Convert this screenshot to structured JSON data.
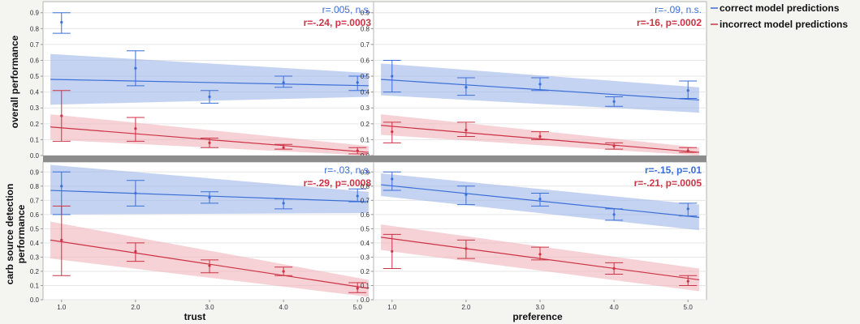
{
  "colors": {
    "blue": "#3a6fd8",
    "red": "#cc3344",
    "blue_band": "#9fb6ea",
    "red_band": "#f0b3b9",
    "panel_bg": "#ffffff",
    "grid": "#e6e6e6",
    "divider": "#8c8c8c",
    "page_bg": "#f4f4f1"
  },
  "legend": [
    {
      "label": "correct model predictions",
      "color": "blue"
    },
    {
      "label": "incorrect model predictions",
      "color": "red"
    }
  ],
  "row_labels": [
    {
      "lines": [
        "overall performance"
      ]
    },
    {
      "lines": [
        "carb source detection",
        "performance"
      ]
    }
  ],
  "column_labels": [
    "trust",
    "preference"
  ],
  "chart_data": [
    {
      "type": "line",
      "xlabel": "trust",
      "ylabel": "overall performance",
      "xlim": [
        0.75,
        5.25
      ],
      "ylim": [
        0,
        0.97
      ],
      "xticks": [
        "1.0",
        "2.0",
        "3.0",
        "4.0",
        "5.0"
      ],
      "yticks": [
        "0.0",
        "0.1",
        "0.2",
        "0.3",
        "0.4",
        "0.5",
        "0.6",
        "0.7",
        "0.8",
        "0.9"
      ],
      "grid": true,
      "annotations": [
        {
          "text": "r=.005, n.s.",
          "color": "blue",
          "bold": false
        },
        {
          "text": "r=-.24, p=.0003",
          "color": "red",
          "bold": true
        }
      ],
      "series": [
        {
          "name": "correct model predictions",
          "color": "blue",
          "fit": [
            0.48,
            0.44
          ],
          "band_lower": [
            0.32,
            0.37
          ],
          "band_upper": [
            0.64,
            0.52
          ],
          "points": [
            {
              "x": 1,
              "y": 0.84,
              "lo": 0.77,
              "hi": 0.9
            },
            {
              "x": 2,
              "y": 0.55,
              "lo": 0.44,
              "hi": 0.66
            },
            {
              "x": 3,
              "y": 0.37,
              "lo": 0.33,
              "hi": 0.41
            },
            {
              "x": 4,
              "y": 0.46,
              "lo": 0.43,
              "hi": 0.5
            },
            {
              "x": 5,
              "y": 0.46,
              "lo": 0.41,
              "hi": 0.5
            }
          ]
        },
        {
          "name": "incorrect model predictions",
          "color": "red",
          "fit": [
            0.18,
            0.02
          ],
          "band_lower": [
            0.1,
            0.0
          ],
          "band_upper": [
            0.26,
            0.06
          ],
          "points": [
            {
              "x": 1,
              "y": 0.25,
              "lo": 0.09,
              "hi": 0.41
            },
            {
              "x": 2,
              "y": 0.17,
              "lo": 0.09,
              "hi": 0.24
            },
            {
              "x": 3,
              "y": 0.08,
              "lo": 0.05,
              "hi": 0.11
            },
            {
              "x": 4,
              "y": 0.05,
              "lo": 0.04,
              "hi": 0.07
            },
            {
              "x": 5,
              "y": 0.03,
              "lo": 0.01,
              "hi": 0.05
            }
          ]
        }
      ]
    },
    {
      "type": "line",
      "xlabel": "preference",
      "ylabel": "overall performance",
      "xlim": [
        0.75,
        5.25
      ],
      "ylim": [
        0,
        0.97
      ],
      "xticks": [
        "1.0",
        "2.0",
        "3.0",
        "4.0",
        "5.0"
      ],
      "yticks": [
        "0.0",
        "0.1",
        "0.2",
        "0.3",
        "0.4",
        "0.5",
        "0.6",
        "0.7",
        "0.8",
        "0.9"
      ],
      "grid": true,
      "annotations": [
        {
          "text": "r=-.09, n.s.",
          "color": "blue",
          "bold": false
        },
        {
          "text": "r=-16, p=.0002",
          "color": "red",
          "bold": true
        }
      ],
      "series": [
        {
          "name": "correct model predictions",
          "color": "blue",
          "fit": [
            0.48,
            0.35
          ],
          "band_lower": [
            0.38,
            0.27
          ],
          "band_upper": [
            0.58,
            0.43
          ],
          "points": [
            {
              "x": 1,
              "y": 0.5,
              "lo": 0.4,
              "hi": 0.6
            },
            {
              "x": 2,
              "y": 0.43,
              "lo": 0.38,
              "hi": 0.49
            },
            {
              "x": 3,
              "y": 0.45,
              "lo": 0.41,
              "hi": 0.49
            },
            {
              "x": 4,
              "y": 0.34,
              "lo": 0.31,
              "hi": 0.37
            },
            {
              "x": 5,
              "y": 0.41,
              "lo": 0.36,
              "hi": 0.47
            }
          ]
        },
        {
          "name": "incorrect model predictions",
          "color": "red",
          "fit": [
            0.19,
            0.02
          ],
          "band_lower": [
            0.13,
            0.0
          ],
          "band_upper": [
            0.26,
            0.05
          ],
          "points": [
            {
              "x": 1,
              "y": 0.15,
              "lo": 0.08,
              "hi": 0.21
            },
            {
              "x": 2,
              "y": 0.16,
              "lo": 0.12,
              "hi": 0.21
            },
            {
              "x": 3,
              "y": 0.12,
              "lo": 0.1,
              "hi": 0.15
            },
            {
              "x": 4,
              "y": 0.06,
              "lo": 0.04,
              "hi": 0.08
            },
            {
              "x": 5,
              "y": 0.03,
              "lo": 0.02,
              "hi": 0.05
            }
          ]
        }
      ]
    },
    {
      "type": "line",
      "xlabel": "trust",
      "ylabel": "carb source detection performance",
      "xlim": [
        0.75,
        5.25
      ],
      "ylim": [
        0,
        0.97
      ],
      "xticks": [
        "1.0",
        "2.0",
        "3.0",
        "4.0",
        "5.0"
      ],
      "yticks": [
        "0.0",
        "0.1",
        "0.2",
        "0.3",
        "0.4",
        "0.5",
        "0.6",
        "0.7",
        "0.8",
        "0.9"
      ],
      "grid": true,
      "annotations": [
        {
          "text": "r=-.03, n.s.",
          "color": "blue",
          "bold": false
        },
        {
          "text": "r=-.29, p=.0008",
          "color": "red",
          "bold": true
        }
      ],
      "series": [
        {
          "name": "correct model predictions",
          "color": "blue",
          "fit": [
            0.77,
            0.69
          ],
          "band_lower": [
            0.6,
            0.61
          ],
          "band_upper": [
            0.95,
            0.76
          ],
          "points": [
            {
              "x": 1,
              "y": 0.8,
              "lo": 0.6,
              "hi": 0.9
            },
            {
              "x": 2,
              "y": 0.75,
              "lo": 0.66,
              "hi": 0.84
            },
            {
              "x": 3,
              "y": 0.72,
              "lo": 0.68,
              "hi": 0.76
            },
            {
              "x": 4,
              "y": 0.68,
              "lo": 0.64,
              "hi": 0.71
            },
            {
              "x": 5,
              "y": 0.73,
              "lo": 0.69,
              "hi": 0.78
            }
          ]
        },
        {
          "name": "incorrect model predictions",
          "color": "red",
          "fit": [
            0.42,
            0.08
          ],
          "band_lower": [
            0.29,
            0.02
          ],
          "band_upper": [
            0.55,
            0.14
          ],
          "points": [
            {
              "x": 1,
              "y": 0.42,
              "lo": 0.17,
              "hi": 0.66
            },
            {
              "x": 2,
              "y": 0.34,
              "lo": 0.27,
              "hi": 0.4
            },
            {
              "x": 3,
              "y": 0.24,
              "lo": 0.19,
              "hi": 0.28
            },
            {
              "x": 4,
              "y": 0.2,
              "lo": 0.17,
              "hi": 0.23
            },
            {
              "x": 5,
              "y": 0.08,
              "lo": 0.05,
              "hi": 0.12
            }
          ]
        }
      ]
    },
    {
      "type": "line",
      "xlabel": "preference",
      "ylabel": "carb source detection performance",
      "xlim": [
        0.75,
        5.25
      ],
      "ylim": [
        0,
        0.97
      ],
      "xticks": [
        "1.0",
        "2.0",
        "3.0",
        "4.0",
        "5.0"
      ],
      "yticks": [
        "0.0",
        "0.1",
        "0.2",
        "0.3",
        "0.4",
        "0.5",
        "0.6",
        "0.7",
        "0.8",
        "0.9"
      ],
      "grid": true,
      "annotations": [
        {
          "text": "r=-.15, p=.01",
          "color": "blue",
          "bold": true
        },
        {
          "text": "r=-.21, p=.0005",
          "color": "red",
          "bold": true
        }
      ],
      "series": [
        {
          "name": "correct model predictions",
          "color": "blue",
          "fit": [
            0.81,
            0.58
          ],
          "band_lower": [
            0.73,
            0.49
          ],
          "band_upper": [
            0.89,
            0.67
          ],
          "points": [
            {
              "x": 1,
              "y": 0.85,
              "lo": 0.77,
              "hi": 0.9
            },
            {
              "x": 2,
              "y": 0.74,
              "lo": 0.67,
              "hi": 0.8
            },
            {
              "x": 3,
              "y": 0.71,
              "lo": 0.66,
              "hi": 0.75
            },
            {
              "x": 4,
              "y": 0.6,
              "lo": 0.56,
              "hi": 0.64
            },
            {
              "x": 5,
              "y": 0.64,
              "lo": 0.59,
              "hi": 0.68
            }
          ]
        },
        {
          "name": "incorrect model predictions",
          "color": "red",
          "fit": [
            0.44,
            0.14
          ],
          "band_lower": [
            0.35,
            0.06
          ],
          "band_upper": [
            0.53,
            0.22
          ],
          "points": [
            {
              "x": 1,
              "y": 0.34,
              "lo": 0.22,
              "hi": 0.46
            },
            {
              "x": 2,
              "y": 0.36,
              "lo": 0.29,
              "hi": 0.42
            },
            {
              "x": 3,
              "y": 0.32,
              "lo": 0.28,
              "hi": 0.37
            },
            {
              "x": 4,
              "y": 0.22,
              "lo": 0.18,
              "hi": 0.26
            },
            {
              "x": 5,
              "y": 0.13,
              "lo": 0.1,
              "hi": 0.17
            }
          ]
        }
      ]
    }
  ]
}
